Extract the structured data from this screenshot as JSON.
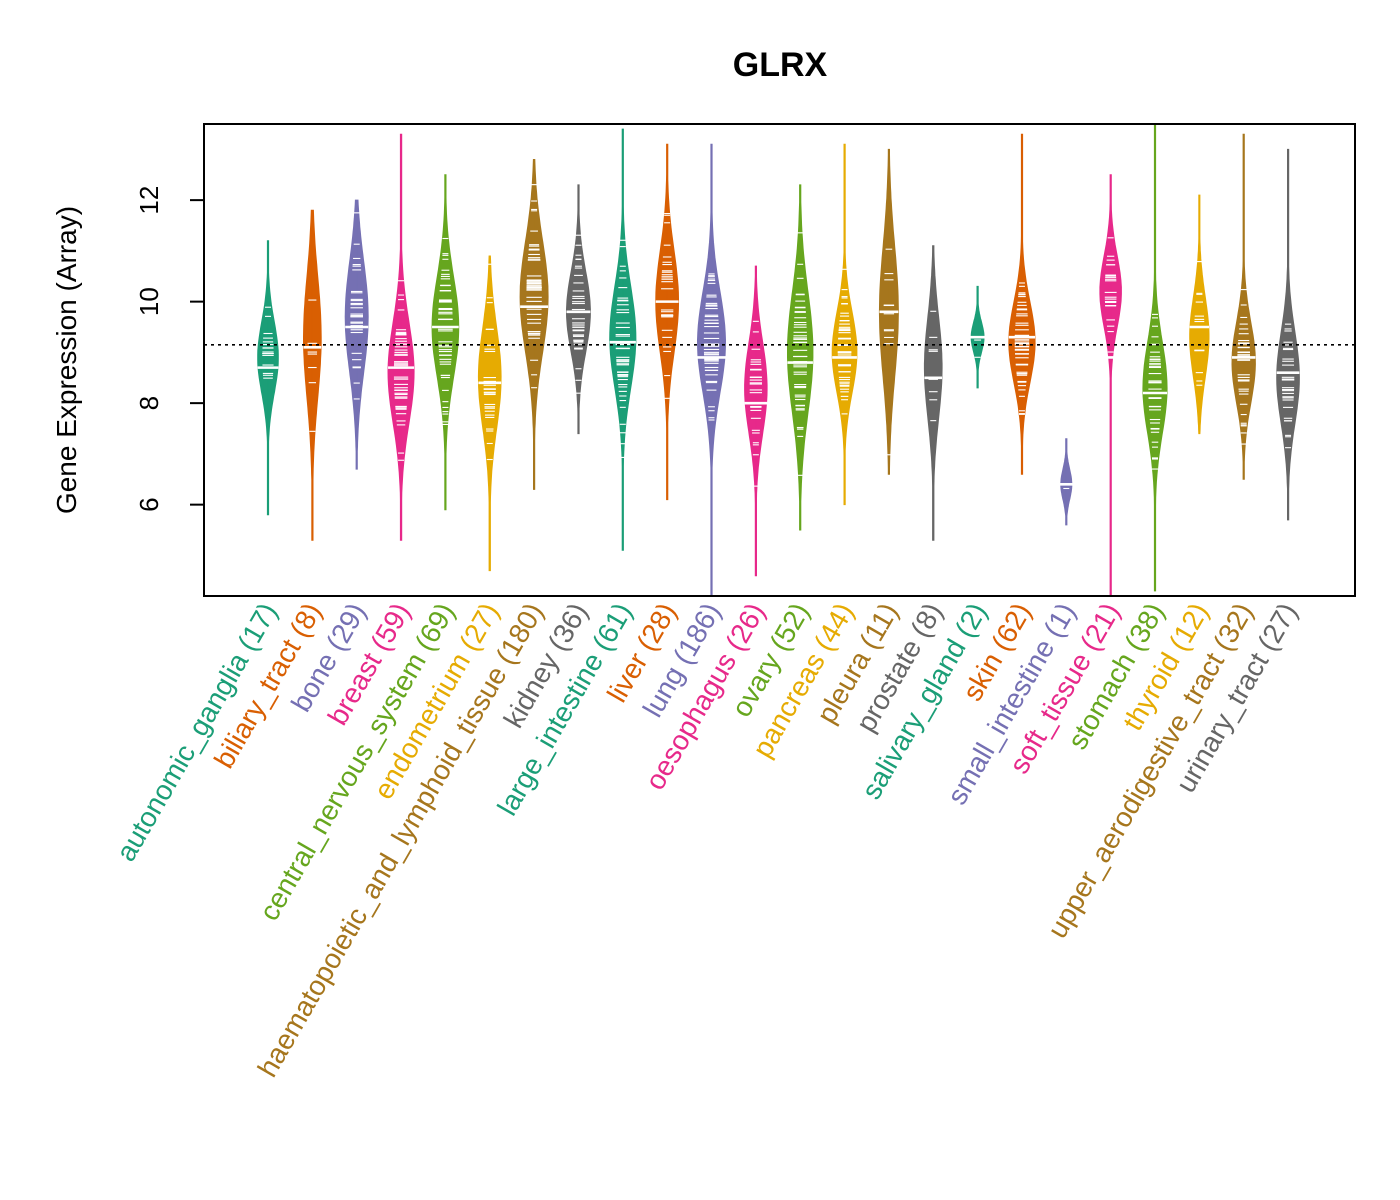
{
  "chart_data": {
    "type": "beanplot",
    "title": "GLRX",
    "ylabel": "Gene Expression (Array)",
    "xlabel": "",
    "ylim": [
      4.2,
      13.5
    ],
    "yticks": [
      6,
      8,
      10,
      12
    ],
    "reference_line": 9.15,
    "categories": [
      {
        "name": "autonomic_ganglia",
        "count_label": "(17)",
        "n": 17,
        "color": "#1b9e77",
        "min": 5.8,
        "max": 11.2,
        "median": 8.7,
        "peak": 8.9,
        "spread": 0.7
      },
      {
        "name": "biliary_tract",
        "count_label": "(8)",
        "n": 8,
        "color": "#d95f02",
        "min": 5.3,
        "max": 11.8,
        "median": 9.1,
        "peak": 9.3,
        "spread": 1.2
      },
      {
        "name": "bone",
        "count_label": "(29)",
        "n": 29,
        "color": "#7570b3",
        "min": 6.7,
        "max": 12.0,
        "median": 9.5,
        "peak": 9.7,
        "spread": 1.1
      },
      {
        "name": "breast",
        "count_label": "(59)",
        "n": 59,
        "color": "#e7298a",
        "min": 5.3,
        "max": 13.3,
        "median": 8.7,
        "peak": 8.6,
        "spread": 1.0
      },
      {
        "name": "central_nervous_system",
        "count_label": "(69)",
        "n": 69,
        "color": "#66a61e",
        "min": 5.9,
        "max": 12.5,
        "median": 9.5,
        "peak": 9.5,
        "spread": 1.0
      },
      {
        "name": "endometrium",
        "count_label": "(27)",
        "n": 27,
        "color": "#e6ab02",
        "min": 4.7,
        "max": 10.9,
        "median": 8.4,
        "peak": 8.5,
        "spread": 1.0
      },
      {
        "name": "haematopoietic_and_lymphoid_tissue",
        "count_label": "(180)",
        "n": 180,
        "color": "#a6761d",
        "min": 6.3,
        "max": 12.8,
        "median": 9.9,
        "peak": 10.1,
        "spread": 1.1
      },
      {
        "name": "kidney",
        "count_label": "(36)",
        "n": 36,
        "color": "#666666",
        "min": 7.4,
        "max": 12.3,
        "median": 9.8,
        "peak": 9.8,
        "spread": 0.8
      },
      {
        "name": "large_intestine",
        "count_label": "(61)",
        "n": 61,
        "color": "#1b9e77",
        "min": 5.1,
        "max": 13.4,
        "median": 9.2,
        "peak": 9.3,
        "spread": 1.0
      },
      {
        "name": "liver",
        "count_label": "(28)",
        "n": 28,
        "color": "#d95f02",
        "min": 6.1,
        "max": 13.1,
        "median": 10.0,
        "peak": 10.0,
        "spread": 1.0
      },
      {
        "name": "lung",
        "count_label": "(186)",
        "n": 186,
        "color": "#7570b3",
        "min": 4.2,
        "max": 13.1,
        "median": 8.9,
        "peak": 9.2,
        "spread": 1.0
      },
      {
        "name": "oesophagus",
        "count_label": "(26)",
        "n": 26,
        "color": "#e7298a",
        "min": 4.6,
        "max": 10.7,
        "median": 8.0,
        "peak": 8.3,
        "spread": 0.9
      },
      {
        "name": "ovary",
        "count_label": "(52)",
        "n": 52,
        "color": "#66a61e",
        "min": 5.5,
        "max": 12.3,
        "median": 8.8,
        "peak": 9.0,
        "spread": 1.2
      },
      {
        "name": "pancreas",
        "count_label": "(44)",
        "n": 44,
        "color": "#e6ab02",
        "min": 6.0,
        "max": 13.1,
        "median": 8.9,
        "peak": 9.0,
        "spread": 0.8
      },
      {
        "name": "pleura",
        "count_label": "(11)",
        "n": 11,
        "color": "#a6761d",
        "min": 6.6,
        "max": 13.0,
        "median": 9.8,
        "peak": 9.8,
        "spread": 1.3
      },
      {
        "name": "prostate",
        "count_label": "(8)",
        "n": 8,
        "color": "#666666",
        "min": 5.3,
        "max": 11.1,
        "median": 8.5,
        "peak": 8.7,
        "spread": 1.0
      },
      {
        "name": "salivary_gland",
        "count_label": "(2)",
        "n": 2,
        "color": "#1b9e77",
        "min": 8.3,
        "max": 10.3,
        "median": 9.3,
        "peak": 9.3,
        "spread": 0.3
      },
      {
        "name": "skin",
        "count_label": "(62)",
        "n": 62,
        "color": "#d95f02",
        "min": 6.6,
        "max": 13.3,
        "median": 9.3,
        "peak": 9.2,
        "spread": 0.8
      },
      {
        "name": "small_intestine",
        "count_label": "(1)",
        "n": 1,
        "color": "#7570b3",
        "min": 5.6,
        "max": 7.3,
        "median": 6.4,
        "peak": 6.4,
        "spread": 0.3
      },
      {
        "name": "soft_tissue",
        "count_label": "(21)",
        "n": 21,
        "color": "#e7298a",
        "min": 4.2,
        "max": 12.5,
        "median": 8.9,
        "peak": 10.2,
        "spread": 0.7
      },
      {
        "name": "stomach",
        "count_label": "(38)",
        "n": 38,
        "color": "#66a61e",
        "min": 4.3,
        "max": 13.5,
        "median": 8.2,
        "peak": 8.3,
        "spread": 0.9
      },
      {
        "name": "thyroid",
        "count_label": "(12)",
        "n": 12,
        "color": "#e6ab02",
        "min": 7.4,
        "max": 12.1,
        "median": 9.5,
        "peak": 9.3,
        "spread": 0.8
      },
      {
        "name": "upper_aerodigestive_tract",
        "count_label": "(32)",
        "n": 32,
        "color": "#a6761d",
        "min": 6.5,
        "max": 13.3,
        "median": 8.9,
        "peak": 8.8,
        "spread": 0.8
      },
      {
        "name": "urinary_tract",
        "count_label": "(27)",
        "n": 27,
        "color": "#666666",
        "min": 5.7,
        "max": 13.0,
        "median": 8.6,
        "peak": 8.5,
        "spread": 0.9
      }
    ]
  }
}
